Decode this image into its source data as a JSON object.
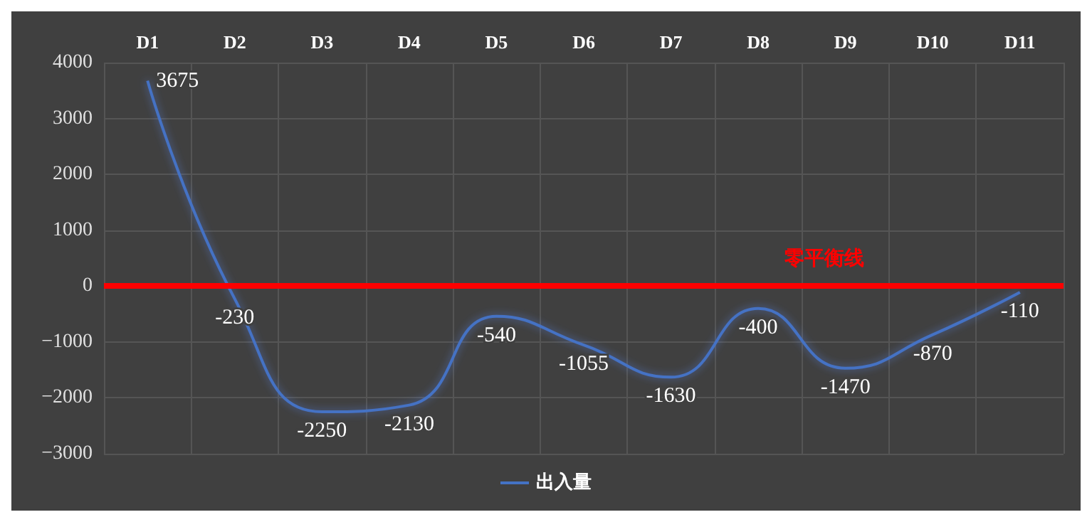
{
  "chart_data": {
    "type": "line",
    "categories": [
      "D1",
      "D2",
      "D3",
      "D4",
      "D5",
      "D6",
      "D7",
      "D8",
      "D9",
      "D10",
      "D11"
    ],
    "series": [
      {
        "name": "出入量",
        "color": "#4472c4",
        "values": [
          3675,
          -230,
          -2250,
          -2130,
          -540,
          -1055,
          -1630,
          -400,
          -1470,
          -870,
          -110
        ]
      }
    ],
    "ylim": [
      -3000,
      4000
    ],
    "yticks": [
      -3000,
      -2000,
      -1000,
      0,
      1000,
      2000,
      3000,
      4000
    ],
    "ref_lines": [
      {
        "axis": "y",
        "value": 0,
        "label": "零平衡线",
        "color": "#ff0000"
      }
    ],
    "data_labels": true,
    "grid": true,
    "legend": "bottom",
    "marker": "none",
    "line_style": "solid"
  }
}
